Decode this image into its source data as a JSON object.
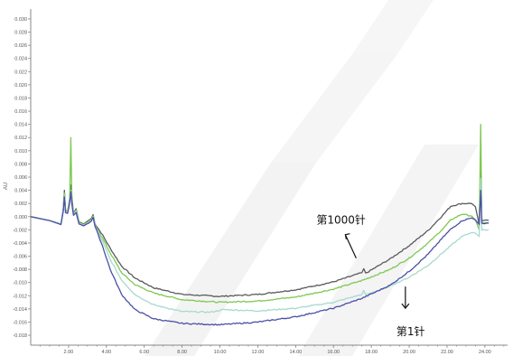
{
  "chart_data": {
    "type": "line",
    "ylabel": "AU",
    "xlim": [
      0,
      25.2
    ],
    "ylim": [
      -0.0195,
      0.0315
    ],
    "x_ticks": [
      2,
      4,
      6,
      8,
      10,
      12,
      14,
      16,
      18,
      20,
      22,
      24
    ],
    "x_tick_labels": [
      "2.00",
      "4.00",
      "6.00",
      "8.00",
      "10.00",
      "12.00",
      "14.00",
      "16.00",
      "18.00",
      "20.00",
      "22.00",
      "24.00"
    ],
    "y_ticks": [
      0.03,
      0.028,
      0.026,
      0.024,
      0.022,
      0.02,
      0.018,
      0.016,
      0.014,
      0.012,
      0.01,
      0.008,
      0.006,
      0.004,
      0.002,
      0.0,
      -0.002,
      -0.004,
      -0.006,
      -0.008,
      -0.01,
      -0.012,
      -0.014,
      -0.016,
      -0.018
    ],
    "y_tick_labels": [
      "0.030",
      "0.028",
      "0.026",
      "0.024",
      "0.022",
      "0.020",
      "0.018",
      "0.016",
      "0.014",
      "0.012",
      "0.010",
      "0.008",
      "0.006",
      "0.004",
      "0.002",
      "0.000",
      "-0.002",
      "-0.004",
      "-0.006",
      "-0.008",
      "-0.010",
      "-0.012",
      "-0.014",
      "-0.016",
      "-0.018"
    ],
    "grid": false,
    "legend": "none",
    "series": [
      {
        "color": "#5a5a5a",
        "points": [
          [
            0,
            0.0
          ],
          [
            1.0,
            -0.0006
          ],
          [
            1.6,
            -0.0011
          ],
          [
            1.72,
            0.0012
          ],
          [
            1.78,
            0.004
          ],
          [
            1.84,
            0.001
          ],
          [
            1.95,
            0.0008
          ],
          [
            2.06,
            0.0028
          ],
          [
            2.12,
            0.0048
          ],
          [
            2.18,
            0.0028
          ],
          [
            2.26,
            0.0005
          ],
          [
            2.4,
            0.0012
          ],
          [
            2.55,
            -0.0008
          ],
          [
            2.8,
            -0.0011
          ],
          [
            3.2,
            -0.0003
          ],
          [
            3.3,
            0.0003
          ],
          [
            3.4,
            -0.0011
          ],
          [
            3.8,
            -0.0028
          ],
          [
            4.2,
            -0.0048
          ],
          [
            4.8,
            -0.0075
          ],
          [
            5.5,
            -0.0093
          ],
          [
            6.5,
            -0.0108
          ],
          [
            8,
            -0.0118
          ],
          [
            10,
            -0.0121
          ],
          [
            12,
            -0.0118
          ],
          [
            14,
            -0.0111
          ],
          [
            16,
            -0.0099
          ],
          [
            17.5,
            -0.0085
          ],
          [
            17.6,
            -0.0079
          ],
          [
            17.7,
            -0.0086
          ],
          [
            19,
            -0.0064
          ],
          [
            20,
            -0.0044
          ],
          [
            21,
            -0.0021
          ],
          [
            21.8,
            0.0003
          ],
          [
            22.2,
            0.0016
          ],
          [
            22.8,
            0.002
          ],
          [
            23.3,
            0.002
          ],
          [
            23.5,
            0.0015
          ],
          [
            23.7,
            -0.0012
          ],
          [
            23.78,
            0.008
          ],
          [
            23.84,
            -0.0006
          ],
          [
            24.2,
            -0.0006
          ]
        ]
      },
      {
        "color": "#7ec850",
        "points": [
          [
            0,
            0.0
          ],
          [
            1.0,
            -0.0006
          ],
          [
            1.6,
            -0.0011
          ],
          [
            1.72,
            0.001
          ],
          [
            1.78,
            0.0036
          ],
          [
            1.84,
            0.001
          ],
          [
            1.95,
            0.0008
          ],
          [
            2.06,
            0.0026
          ],
          [
            2.12,
            0.012
          ],
          [
            2.18,
            0.002
          ],
          [
            2.26,
            0.0004
          ],
          [
            2.4,
            0.001
          ],
          [
            2.55,
            -0.0009
          ],
          [
            2.8,
            -0.0012
          ],
          [
            3.2,
            -0.0005
          ],
          [
            3.3,
            0.0001
          ],
          [
            3.4,
            -0.0013
          ],
          [
            3.8,
            -0.0033
          ],
          [
            4.2,
            -0.0055
          ],
          [
            4.8,
            -0.0085
          ],
          [
            5.5,
            -0.0103
          ],
          [
            6.5,
            -0.0116
          ],
          [
            8,
            -0.0126
          ],
          [
            10,
            -0.013
          ],
          [
            12,
            -0.0128
          ],
          [
            14,
            -0.0122
          ],
          [
            16,
            -0.011
          ],
          [
            17.5,
            -0.0097
          ],
          [
            19,
            -0.008
          ],
          [
            20,
            -0.0063
          ],
          [
            21,
            -0.004
          ],
          [
            21.8,
            -0.0018
          ],
          [
            22.2,
            -0.0005
          ],
          [
            22.8,
            0.0004
          ],
          [
            23.3,
            0.0001
          ],
          [
            23.5,
            -0.0005
          ],
          [
            23.7,
            -0.002
          ],
          [
            23.78,
            0.014
          ],
          [
            23.84,
            -0.001
          ],
          [
            24.2,
            -0.001
          ]
        ]
      },
      {
        "color": "#a7d9d0",
        "points": [
          [
            0,
            0.0
          ],
          [
            1.0,
            -0.0006
          ],
          [
            1.6,
            -0.0011
          ],
          [
            1.72,
            0.001
          ],
          [
            1.78,
            0.0032
          ],
          [
            1.84,
            0.0008
          ],
          [
            1.95,
            0.0006
          ],
          [
            2.06,
            0.0022
          ],
          [
            2.12,
            0.004
          ],
          [
            2.18,
            0.002
          ],
          [
            2.26,
            0.0003
          ],
          [
            2.4,
            0.0008
          ],
          [
            2.55,
            -0.001
          ],
          [
            2.8,
            -0.0013
          ],
          [
            3.2,
            -0.0006
          ],
          [
            3.3,
            0.0
          ],
          [
            3.4,
            -0.0014
          ],
          [
            3.8,
            -0.0038
          ],
          [
            4.2,
            -0.0065
          ],
          [
            4.8,
            -0.0096
          ],
          [
            5.5,
            -0.0118
          ],
          [
            6.5,
            -0.0134
          ],
          [
            8,
            -0.0144
          ],
          [
            9.5,
            -0.0145
          ],
          [
            10.2,
            -0.0141
          ],
          [
            12,
            -0.0143
          ],
          [
            14,
            -0.0139
          ],
          [
            16,
            -0.013
          ],
          [
            17.5,
            -0.0118
          ],
          [
            17.6,
            -0.0112
          ],
          [
            17.7,
            -0.0119
          ],
          [
            19,
            -0.0105
          ],
          [
            20,
            -0.0092
          ],
          [
            21,
            -0.0074
          ],
          [
            21.8,
            -0.0054
          ],
          [
            22.2,
            -0.0044
          ],
          [
            22.8,
            -0.003
          ],
          [
            23.3,
            -0.0024
          ],
          [
            23.5,
            -0.0025
          ],
          [
            23.7,
            -0.003
          ],
          [
            23.78,
            0.0058
          ],
          [
            23.84,
            -0.002
          ],
          [
            24.2,
            -0.002
          ]
        ]
      },
      {
        "color": "#4a4fa8",
        "points": [
          [
            0,
            0.0
          ],
          [
            1.0,
            -0.0006
          ],
          [
            1.6,
            -0.0012
          ],
          [
            1.72,
            0.0008
          ],
          [
            1.78,
            0.003
          ],
          [
            1.84,
            0.0006
          ],
          [
            1.95,
            0.0005
          ],
          [
            2.06,
            0.002
          ],
          [
            2.12,
            0.0038
          ],
          [
            2.18,
            0.0018
          ],
          [
            2.26,
            0.0002
          ],
          [
            2.4,
            0.0006
          ],
          [
            2.55,
            -0.0011
          ],
          [
            2.8,
            -0.0014
          ],
          [
            3.2,
            -0.0007
          ],
          [
            3.3,
            -0.0001
          ],
          [
            3.4,
            -0.0015
          ],
          [
            3.8,
            -0.0045
          ],
          [
            4.2,
            -0.008
          ],
          [
            4.8,
            -0.0118
          ],
          [
            5.5,
            -0.0141
          ],
          [
            6.5,
            -0.0155
          ],
          [
            8,
            -0.0162
          ],
          [
            10,
            -0.0164
          ],
          [
            12,
            -0.016
          ],
          [
            14,
            -0.0152
          ],
          [
            16,
            -0.0139
          ],
          [
            17.5,
            -0.0124
          ],
          [
            19,
            -0.0104
          ],
          [
            20,
            -0.0083
          ],
          [
            21,
            -0.0057
          ],
          [
            21.8,
            -0.0031
          ],
          [
            22.2,
            -0.0019
          ],
          [
            22.8,
            -0.0006
          ],
          [
            23.3,
            -0.0002
          ],
          [
            23.5,
            -0.0005
          ],
          [
            23.7,
            -0.0012
          ],
          [
            23.78,
            0.004
          ],
          [
            23.84,
            -0.001
          ],
          [
            24.2,
            -0.001
          ]
        ]
      }
    ],
    "annotations": [
      {
        "text": "第1000针",
        "arrow": "up",
        "x": 17.2,
        "y": -0.0063
      },
      {
        "text": "第1针",
        "arrow": "down",
        "x": 19.8,
        "y": -0.0128
      }
    ]
  }
}
